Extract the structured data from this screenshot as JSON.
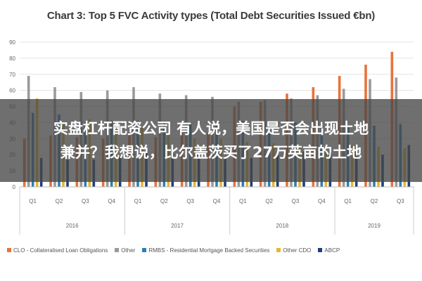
{
  "chart_data": {
    "type": "bar",
    "title": "Chart 3: Top 5 FVC Activity types (Total Debt Securities Issued €bn)",
    "categories": [
      "Q1",
      "Q2",
      "Q3",
      "Q4",
      "Q1",
      "Q2",
      "Q3",
      "Q4",
      "Q1",
      "Q2",
      "Q3",
      "Q4",
      "Q1",
      "Q2",
      "Q3"
    ],
    "years": [
      {
        "label": "2016",
        "quarters": 4
      },
      {
        "label": "2017",
        "quarters": 4
      },
      {
        "label": "2018",
        "quarters": 4
      },
      {
        "label": "2019",
        "quarters": 3
      }
    ],
    "ylim": [
      0,
      90
    ],
    "yticks": [
      0,
      10,
      20,
      30,
      40,
      50,
      60,
      70,
      80,
      90
    ],
    "grid": true,
    "legend_position": "bottom",
    "series": [
      {
        "name": "CLO - Collateralised Loan Obligations",
        "color": "#e8733a",
        "values": [
          30,
          32,
          31,
          30,
          32,
          31,
          35,
          34,
          50,
          53,
          58,
          62,
          69,
          76,
          84
        ]
      },
      {
        "name": "Other",
        "color": "#9a9a9a",
        "values": [
          69,
          62,
          59,
          60,
          62,
          58,
          57,
          56,
          53,
          54,
          55,
          57,
          61,
          67,
          68
        ]
      },
      {
        "name": "RMBS - Residential Mortgage Backed Securities",
        "color": "#2e7fb0",
        "values": [
          46,
          45,
          40,
          41,
          41,
          40,
          39,
          38,
          41,
          40,
          40,
          40,
          38,
          38,
          39
        ]
      },
      {
        "name": "Other CDO",
        "color": "#e8b62f",
        "values": [
          55,
          40,
          42,
          40,
          38,
          32,
          30,
          30,
          28,
          27,
          25,
          25,
          26,
          25,
          24
        ]
      },
      {
        "name": "ABCP",
        "color": "#1f3f7a",
        "values": [
          18,
          17,
          17,
          19,
          22,
          21,
          20,
          18,
          18,
          20,
          22,
          22,
          22,
          20,
          26
        ]
      }
    ]
  },
  "overlay": {
    "line1": "实盘杠杆配资公司 有人说，美国是否会出现土地",
    "line2": "兼并？我想说，比尔盖茨买了27万英亩的土地"
  }
}
